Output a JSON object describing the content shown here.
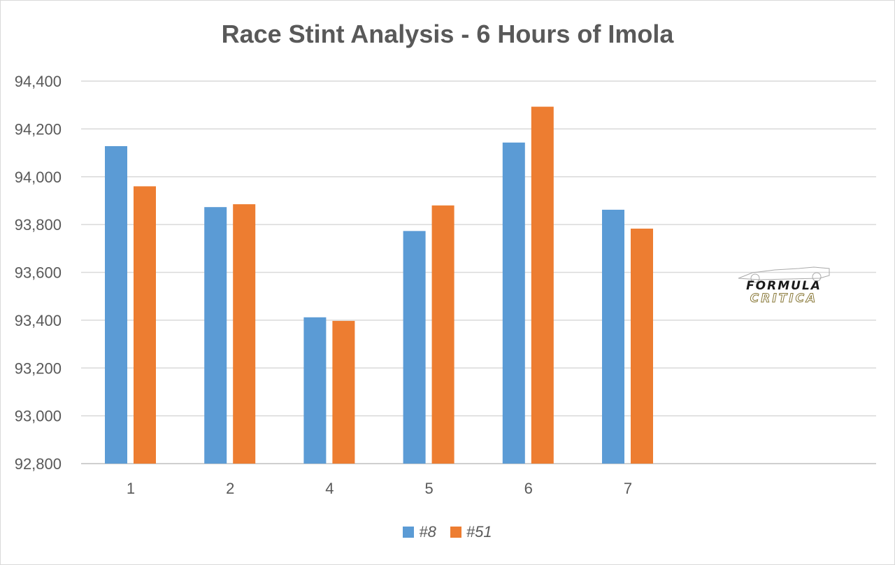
{
  "chart_data": {
    "type": "bar",
    "title": "Race Stint Analysis - 6 Hours of Imola",
    "categories": [
      "1",
      "2",
      "4",
      "5",
      "6",
      "7"
    ],
    "series": [
      {
        "name": "#8",
        "values": [
          94128,
          93873,
          93412,
          93773,
          94143,
          93862
        ],
        "color": "#5b9bd5"
      },
      {
        "name": "#51",
        "values": [
          93960,
          93885,
          93397,
          93880,
          94293,
          93783
        ],
        "color": "#ed7d31"
      }
    ],
    "y_ticks": [
      "92,800",
      "93,000",
      "93,200",
      "93,400",
      "93,600",
      "93,800",
      "94,000",
      "94,200",
      "94,400"
    ],
    "ylim": [
      92800,
      94400
    ],
    "grid": true,
    "legend_position": "bottom"
  },
  "logo": {
    "line1": "FORMULA",
    "line2": "CRITICA"
  }
}
